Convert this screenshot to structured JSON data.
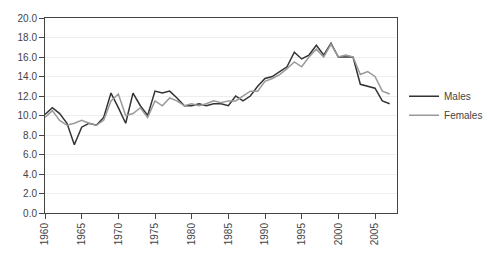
{
  "chart_data": {
    "type": "line",
    "x": [
      1960,
      1961,
      1962,
      1963,
      1964,
      1965,
      1966,
      1967,
      1968,
      1969,
      1970,
      1971,
      1972,
      1973,
      1974,
      1975,
      1976,
      1977,
      1978,
      1979,
      1980,
      1981,
      1982,
      1983,
      1984,
      1985,
      1986,
      1987,
      1988,
      1989,
      1990,
      1991,
      1992,
      1993,
      1994,
      1995,
      1996,
      1997,
      1998,
      1999,
      2000,
      2001,
      2002,
      2003,
      2004,
      2005,
      2006,
      2007
    ],
    "series": [
      {
        "name": "Males",
        "color": "#333333",
        "values": [
          10.1,
          10.8,
          10.2,
          9.2,
          7.0,
          8.8,
          9.2,
          9.0,
          9.8,
          12.3,
          10.8,
          9.2,
          12.3,
          11.0,
          10.0,
          12.5,
          12.3,
          12.5,
          11.8,
          11.0,
          11.0,
          11.2,
          11.0,
          11.2,
          11.2,
          11.0,
          12.0,
          11.5,
          12.0,
          13.0,
          13.8,
          14.0,
          14.5,
          15.0,
          16.5,
          15.8,
          16.2,
          17.2,
          16.2,
          17.4,
          16.0,
          16.0,
          16.0,
          13.2,
          13.0,
          12.8,
          11.5,
          11.2
        ]
      },
      {
        "name": "Females",
        "color": "#999999",
        "values": [
          9.8,
          10.5,
          9.5,
          9.0,
          9.2,
          9.5,
          9.2,
          9.0,
          9.5,
          11.5,
          12.2,
          10.0,
          10.2,
          10.8,
          9.8,
          11.5,
          11.0,
          11.8,
          11.5,
          11.0,
          11.2,
          11.0,
          11.2,
          11.5,
          11.3,
          11.5,
          11.5,
          12.0,
          12.5,
          12.5,
          13.5,
          13.8,
          14.2,
          14.8,
          15.5,
          15.0,
          16.0,
          16.8,
          16.0,
          17.3,
          16.0,
          16.2,
          16.0,
          14.2,
          14.5,
          14.0,
          12.5,
          12.2
        ]
      }
    ],
    "xlim": [
      1960,
      2008
    ],
    "xticks": [
      1960,
      1965,
      1970,
      1975,
      1980,
      1985,
      1990,
      1995,
      2000,
      2005
    ],
    "ylim": [
      0.0,
      20.0
    ],
    "yticks": [
      {
        "value": 0.0,
        "label": "0.0"
      },
      {
        "value": 2.0,
        "label": "2.0"
      },
      {
        "value": 4.0,
        "label": "4.0"
      },
      {
        "value": 6.0,
        "label": "6.0"
      },
      {
        "value": 8.0,
        "label": "8.0"
      },
      {
        "value": 10.0,
        "label": "10.0"
      },
      {
        "value": 12.0,
        "label": "12.0"
      },
      {
        "value": 14.0,
        "label": "14.0"
      },
      {
        "value": 16.0,
        "label": "16.0"
      },
      {
        "value": 18.0,
        "label": "18.0"
      },
      {
        "value": 20.0,
        "label": "20.0"
      }
    ],
    "grid": true,
    "legend": "right"
  }
}
